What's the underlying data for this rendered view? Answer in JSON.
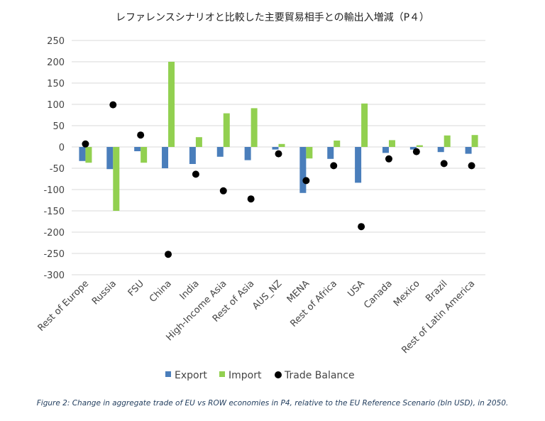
{
  "chart_data": {
    "type": "bar",
    "title": "レファレンスシナリオと比較した主要貿易相手との輸出入増減（P４）",
    "caption": "Figure 2: Change in aggregate trade of EU vs ROW economies in P4, relative to the EU Reference Scenario (bln USD), in 2050.",
    "categories": [
      "Rest of Europe",
      "Russia",
      "FSU",
      "China",
      "India",
      "High-Income Asia",
      "Rest of Asia",
      "AUS_NZ",
      "MENA",
      "Rest of Africa",
      "USA",
      "Canada",
      "Mexico",
      "Brazil",
      "Rest of Latin America"
    ],
    "series": [
      {
        "name": "Export",
        "kind": "bar",
        "color": "#4a7ebb",
        "values": [
          -33,
          -52,
          -10,
          -50,
          -40,
          -23,
          -31,
          -6,
          -108,
          -28,
          -84,
          -14,
          -6,
          -12,
          -16
        ]
      },
      {
        "name": "Import",
        "kind": "bar",
        "color": "#92d050",
        "values": [
          -37,
          -150,
          -37,
          200,
          23,
          79,
          91,
          7,
          -27,
          15,
          102,
          16,
          4,
          27,
          28
        ]
      },
      {
        "name": "Trade Balance",
        "kind": "point",
        "color": "#000000",
        "values": [
          7,
          99,
          28,
          -252,
          -64,
          -103,
          -122,
          -16,
          -79,
          -44,
          -187,
          -28,
          -11,
          -39,
          -44
        ]
      }
    ],
    "ylim": [
      -300,
      250
    ],
    "yticks": [
      250,
      200,
      150,
      100,
      50,
      0,
      -50,
      -100,
      -150,
      -200,
      -250,
      -300
    ],
    "grid": true,
    "legend_position": "bottom"
  }
}
